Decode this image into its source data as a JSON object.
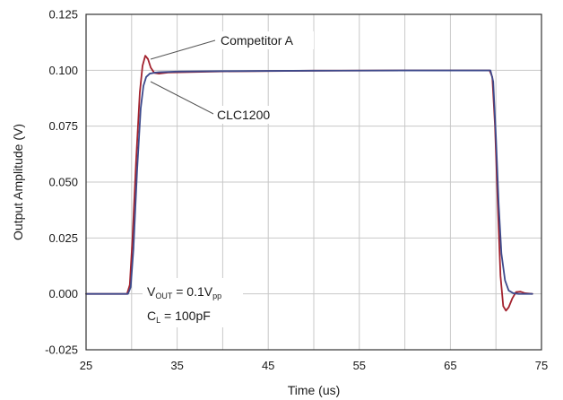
{
  "chart_data": {
    "type": "line",
    "title": "",
    "xlabel": "Time (us)",
    "ylabel": "Output Amplitude (V)",
    "xlim": [
      25,
      75
    ],
    "ylim": [
      -0.025,
      0.125
    ],
    "x_ticks": [
      "25",
      "35",
      "45",
      "55",
      "65",
      "75"
    ],
    "y_ticks": [
      "-0.025",
      "0.000",
      "0.025",
      "0.050",
      "0.075",
      "0.100",
      "0.125"
    ],
    "grid": true,
    "series": [
      {
        "name": "Competitor A",
        "color": "#a3222e",
        "x": [
          25,
          29.5,
          29.8,
          30.1,
          30.5,
          30.9,
          31.2,
          31.5,
          31.8,
          32.1,
          32.5,
          33,
          34,
          40,
          50,
          60,
          69.3,
          69.6,
          69.9,
          70.2,
          70.5,
          70.8,
          71.1,
          71.4,
          71.8,
          72.2,
          72.7,
          73.2,
          74
        ],
        "y": [
          0,
          0,
          0.004,
          0.025,
          0.06,
          0.09,
          0.102,
          0.1065,
          0.105,
          0.1012,
          0.0988,
          0.0985,
          0.099,
          0.0995,
          0.0998,
          0.0999,
          0.0999,
          0.097,
          0.075,
          0.04,
          0.008,
          -0.0055,
          -0.0075,
          -0.006,
          -0.002,
          0.0008,
          0.001,
          0.0003,
          0
        ]
      },
      {
        "name": "CLC1200",
        "color": "#3d4a8c",
        "x": [
          25,
          29.6,
          29.9,
          30.2,
          30.6,
          31,
          31.3,
          31.6,
          32,
          32.5,
          33,
          35,
          40,
          50,
          60,
          69.4,
          69.7,
          70,
          70.3,
          70.6,
          71,
          71.4,
          71.9,
          72.5,
          74
        ],
        "y": [
          0,
          0,
          0.003,
          0.02,
          0.055,
          0.083,
          0.093,
          0.097,
          0.0985,
          0.0989,
          0.0991,
          0.0994,
          0.0996,
          0.0998,
          0.0999,
          0.0999,
          0.095,
          0.07,
          0.04,
          0.018,
          0.006,
          0.0015,
          0.0003,
          0,
          0
        ]
      }
    ],
    "annotations": {
      "competitor_label": "Competitor A",
      "clc_label": "CLC1200",
      "vout_main": "V",
      "vout_sub": "OUT",
      "vout_eq": " = 0.1V",
      "vout_pp": "pp",
      "cl_main": "C",
      "cl_sub": "L",
      "cl_eq": " = 100pF"
    }
  }
}
